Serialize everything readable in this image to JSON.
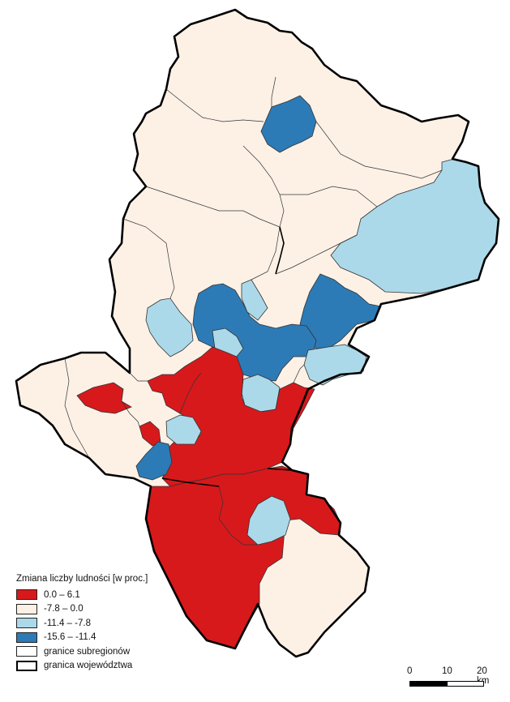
{
  "legend": {
    "title": "Zmiana liczby ludności [w proc.]",
    "classes": [
      {
        "label": "0.0 – 6.1",
        "color": "#d7191c"
      },
      {
        "label": "-7.8 – 0.0",
        "color": "#fdf1e6"
      },
      {
        "label": "-11.4 – -7.8",
        "color": "#abd9e9"
      },
      {
        "label": "-15.6 – -11.4",
        "color": "#2c7bb6"
      }
    ],
    "boundaries": [
      {
        "label": "granice subregionów",
        "style": "thin"
      },
      {
        "label": "granica województwa",
        "style": "thick"
      }
    ]
  },
  "scale_bar": {
    "ticks": [
      "0",
      "10",
      "20 km"
    ],
    "max_km": 20
  },
  "colors": {
    "border": "#000000",
    "inner_border": "#333333"
  }
}
